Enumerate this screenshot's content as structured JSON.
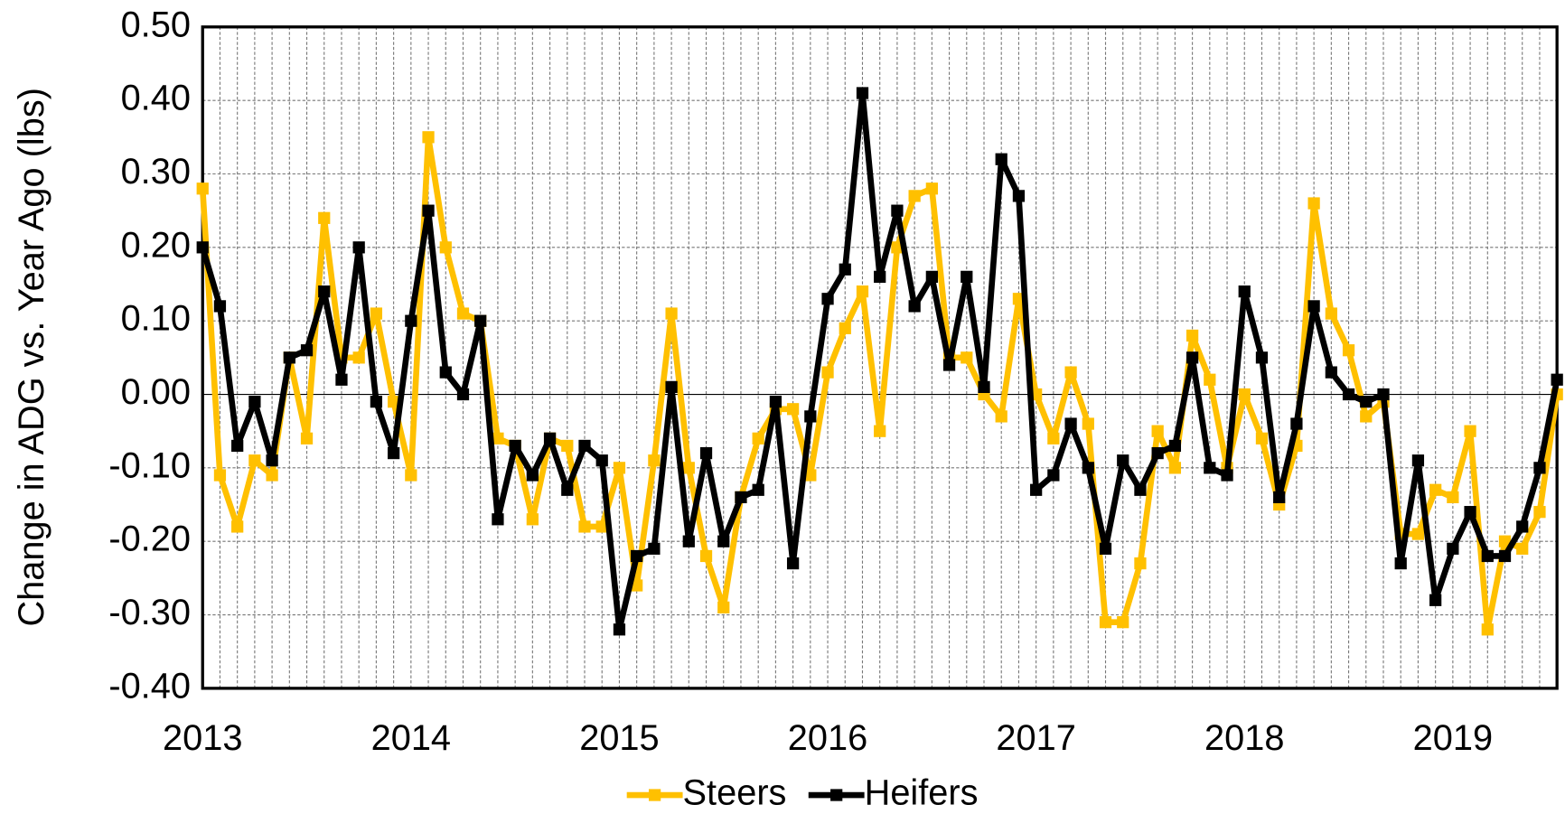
{
  "chart_data": {
    "type": "line",
    "y_label": "Change in ADG vs. Year Ago (lbs)",
    "x": [
      2013,
      2013.0833,
      2013.1667,
      2013.25,
      2013.3333,
      2013.4167,
      2013.5,
      2013.5833,
      2013.6667,
      2013.75,
      2013.8333,
      2013.9167,
      2014,
      2014.0833,
      2014.1667,
      2014.25,
      2014.3333,
      2014.4167,
      2014.5,
      2014.5833,
      2014.6667,
      2014.75,
      2014.8333,
      2014.9167,
      2015,
      2015.0833,
      2015.1667,
      2015.25,
      2015.3333,
      2015.4167,
      2015.5,
      2015.5833,
      2015.6667,
      2015.75,
      2015.8333,
      2015.9167,
      2016,
      2016.0833,
      2016.1667,
      2016.25,
      2016.3333,
      2016.4167,
      2016.5,
      2016.5833,
      2016.6667,
      2016.75,
      2016.8333,
      2016.9167,
      2017,
      2017.0833,
      2017.1667,
      2017.25,
      2017.3333,
      2017.4167,
      2017.5,
      2017.5833,
      2017.6667,
      2017.75,
      2017.8333,
      2017.9167,
      2018,
      2018.0833,
      2018.1667,
      2018.25,
      2018.3333,
      2018.4167,
      2018.5,
      2018.5833,
      2018.6667,
      2018.75,
      2018.8333,
      2018.9167,
      2019,
      2019.0833,
      2019.1667,
      2019.25,
      2019.3333,
      2019.4167,
      2019.5
    ],
    "series": [
      {
        "name": "Steers",
        "color": "#ffc000",
        "values": [
          0.28,
          -0.11,
          -0.18,
          -0.09,
          -0.11,
          0.05,
          -0.06,
          0.24,
          0.05,
          0.05,
          0.11,
          -0.01,
          -0.11,
          0.35,
          0.2,
          0.11,
          0.1,
          -0.06,
          -0.07,
          -0.17,
          -0.06,
          -0.07,
          -0.18,
          -0.18,
          -0.1,
          -0.26,
          -0.09,
          0.11,
          -0.1,
          -0.22,
          -0.29,
          -0.14,
          -0.06,
          -0.02,
          -0.02,
          -0.11,
          0.03,
          0.09,
          0.14,
          -0.05,
          0.2,
          0.27,
          0.28,
          0.05,
          0.05,
          0.0,
          -0.03,
          0.13,
          0.0,
          -0.06,
          0.03,
          -0.04,
          -0.31,
          -0.31,
          -0.23,
          -0.05,
          -0.1,
          0.08,
          0.02,
          -0.1,
          0.0,
          -0.06,
          -0.15,
          -0.07,
          0.26,
          0.11,
          0.06,
          -0.03,
          -0.01,
          -0.19,
          -0.19,
          -0.13,
          -0.14,
          -0.05,
          -0.32,
          -0.2,
          -0.21,
          -0.16,
          0.0
        ]
      },
      {
        "name": "Heifers",
        "color": "#000000",
        "values": [
          0.2,
          0.12,
          -0.07,
          -0.01,
          -0.09,
          0.05,
          0.06,
          0.14,
          0.02,
          0.2,
          -0.01,
          -0.08,
          0.1,
          0.25,
          0.03,
          0.0,
          0.1,
          -0.17,
          -0.07,
          -0.11,
          -0.06,
          -0.13,
          -0.07,
          -0.09,
          -0.32,
          -0.22,
          -0.21,
          0.01,
          -0.2,
          -0.08,
          -0.2,
          -0.14,
          -0.13,
          -0.01,
          -0.23,
          -0.03,
          0.13,
          0.17,
          0.41,
          0.16,
          0.25,
          0.12,
          0.16,
          0.04,
          0.16,
          0.01,
          0.32,
          0.27,
          -0.13,
          -0.11,
          -0.04,
          -0.1,
          -0.21,
          -0.09,
          -0.13,
          -0.08,
          -0.07,
          0.05,
          -0.1,
          -0.11,
          0.14,
          0.05,
          -0.14,
          -0.04,
          0.12,
          0.03,
          0.0,
          -0.01,
          0.0,
          -0.23,
          -0.09,
          -0.28,
          -0.21,
          -0.16,
          -0.22,
          -0.22,
          -0.18,
          -0.1,
          0.02
        ]
      }
    ],
    "xlim": [
      2013,
      2019.5
    ],
    "xticks": [
      2013,
      2014,
      2015,
      2016,
      2017,
      2018,
      2019
    ],
    "ylim": [
      -0.4,
      0.5
    ],
    "yticks": [
      {
        "value": 0.5,
        "label": "0.50"
      },
      {
        "value": 0.4,
        "label": "0.40"
      },
      {
        "value": 0.3,
        "label": "0.30"
      },
      {
        "value": 0.2,
        "label": "0.20"
      },
      {
        "value": 0.1,
        "label": "0.10"
      },
      {
        "value": 0,
        "label": "0.00"
      },
      {
        "value": -0.1,
        "label": "-0.10"
      },
      {
        "value": -0.2,
        "label": "-0.20"
      },
      {
        "value": -0.3,
        "label": "-0.30"
      },
      {
        "value": -0.4,
        "label": "-0.40"
      }
    ],
    "grid": true,
    "legend": "bottom"
  }
}
